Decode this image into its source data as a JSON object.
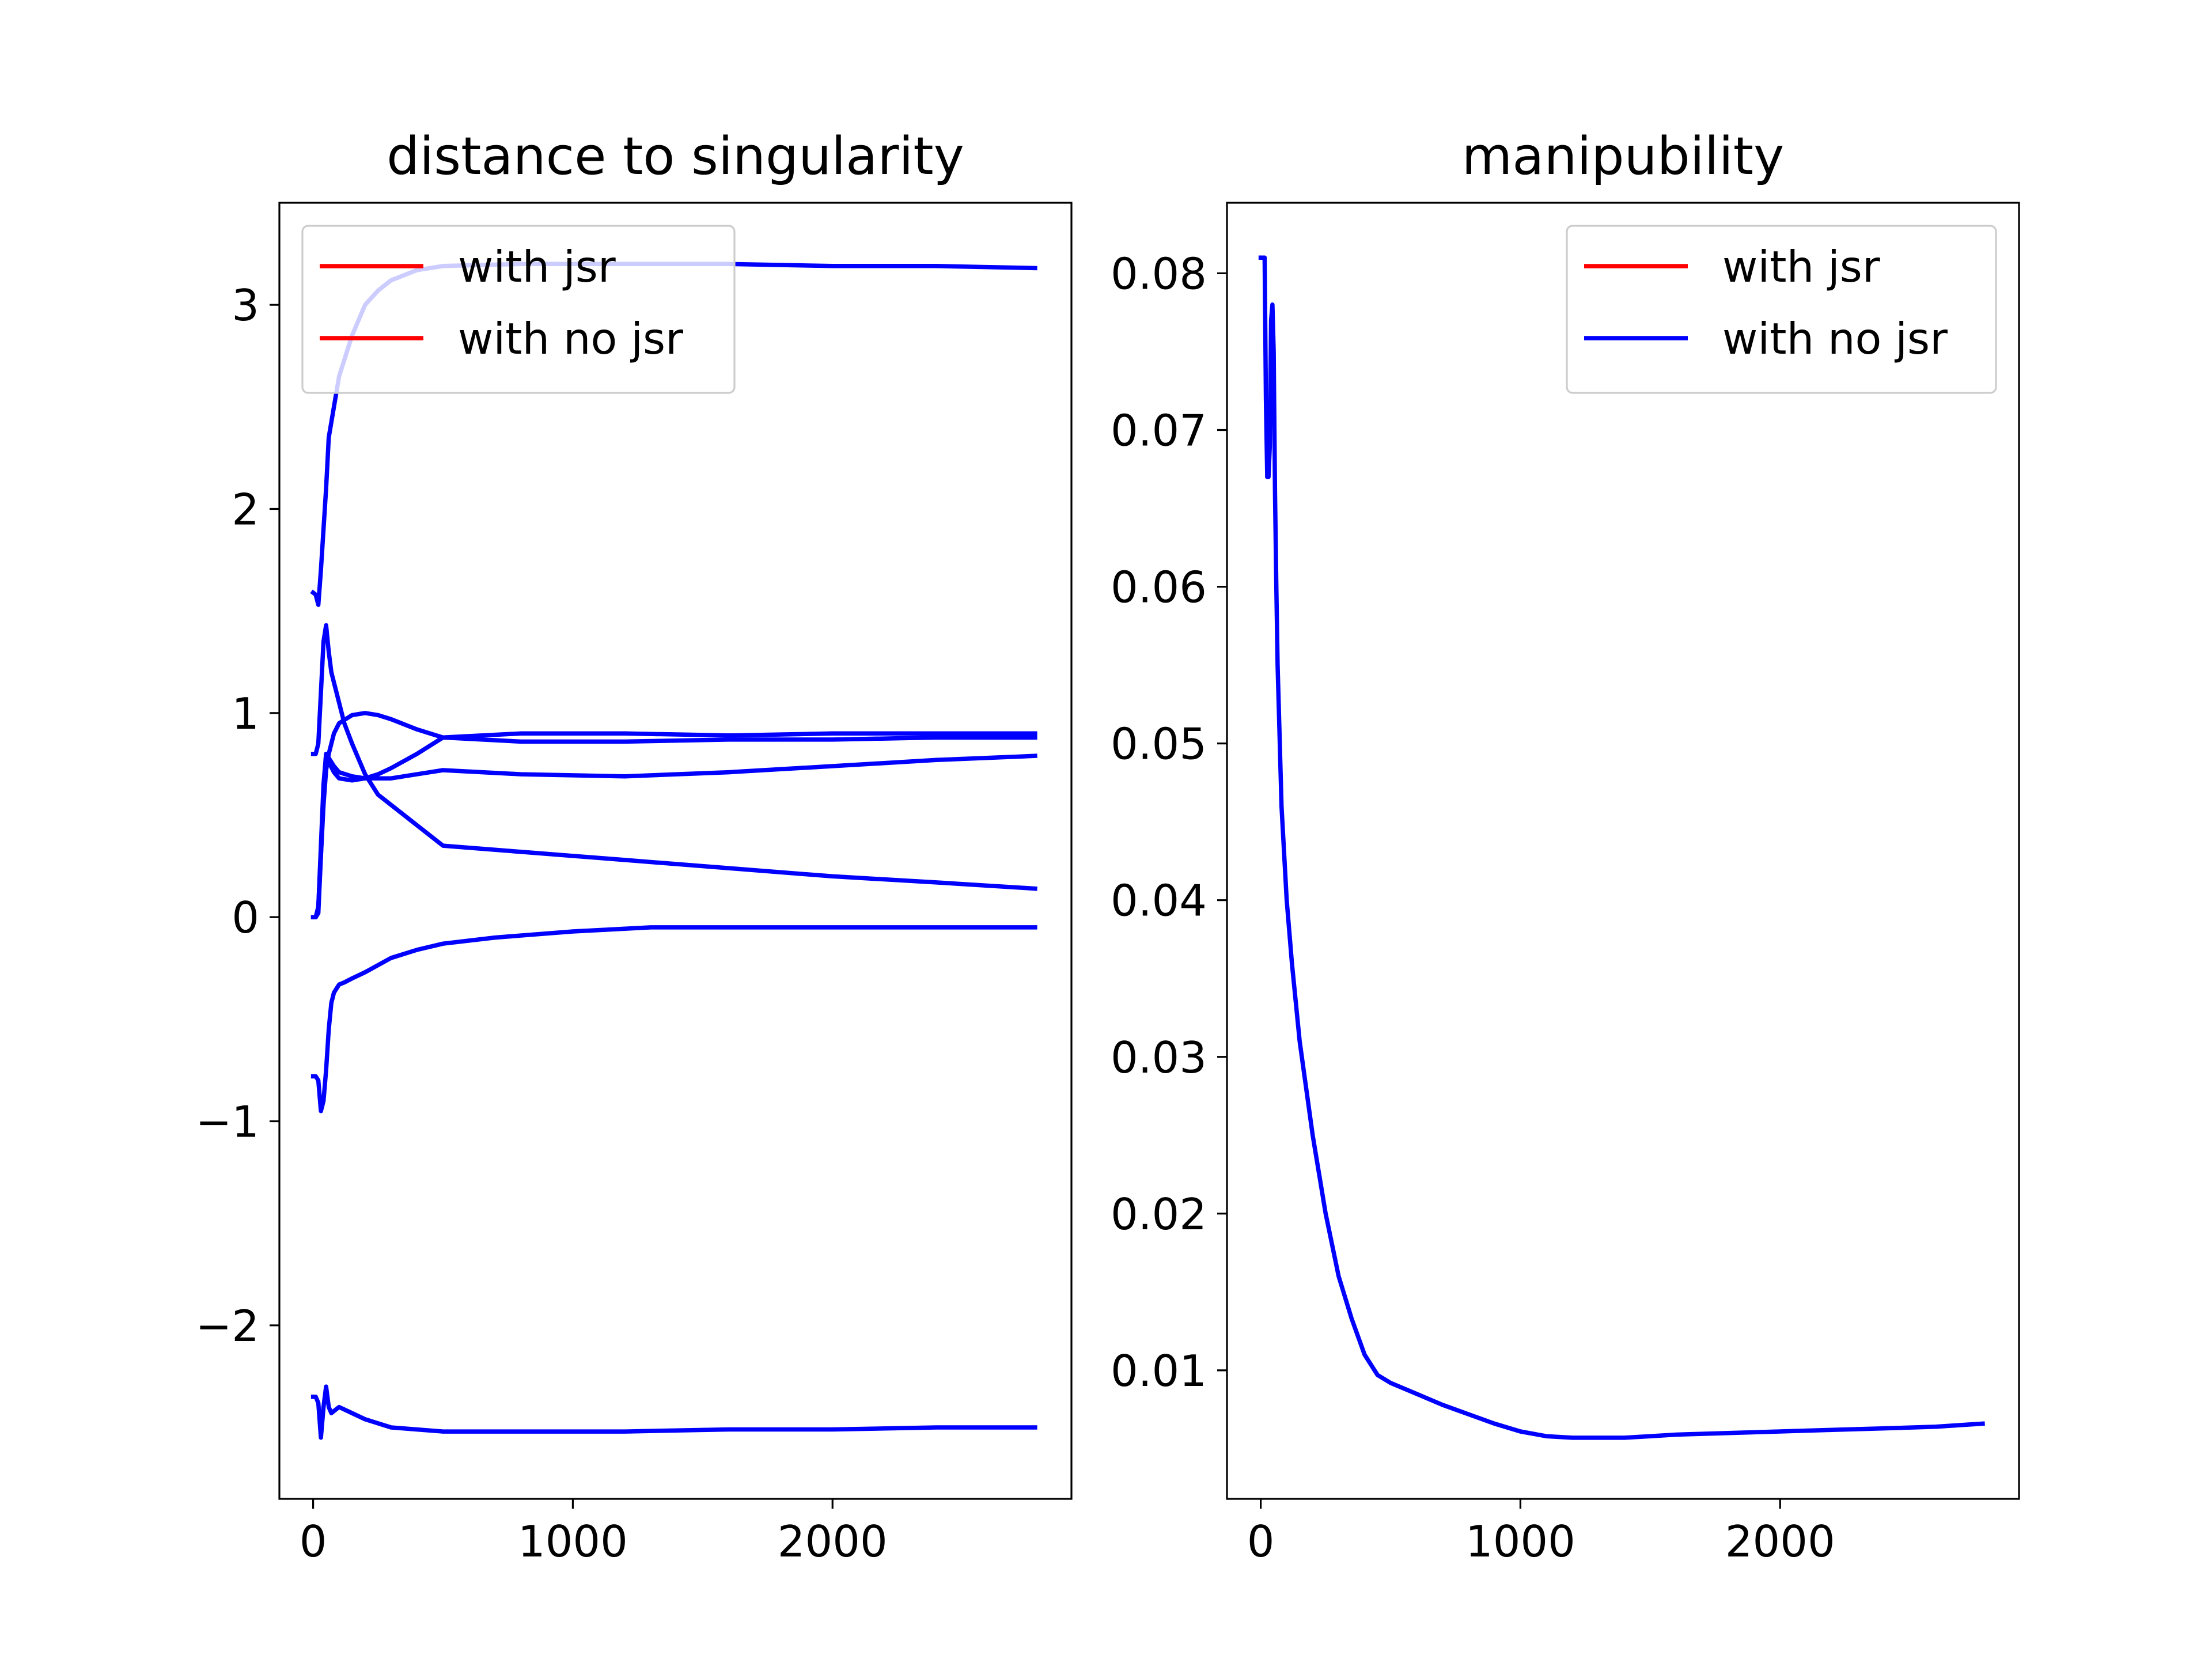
{
  "chart_data": [
    {
      "type": "line",
      "title": "distance to singularity",
      "xlabel": "",
      "ylabel": "",
      "xlim": [
        -130,
        2920
      ],
      "ylim": [
        -2.85,
        3.5
      ],
      "xticks": [
        0,
        1000,
        2000
      ],
      "xtick_labels": [
        "0",
        "1000",
        "2000"
      ],
      "yticks": [
        -2,
        -1,
        0,
        1,
        2,
        3
      ],
      "ytick_labels": [
        "−2",
        "−1",
        "0",
        "1",
        "2",
        "3"
      ],
      "grid": false,
      "legend": {
        "placement": "top-left",
        "entries": [
          {
            "label": "with jsr",
            "color": "#ff0000"
          },
          {
            "label": "with no jsr",
            "color": "#ff0000"
          }
        ]
      },
      "series": [
        {
          "color": "#0000ff",
          "x": [
            0,
            10,
            20,
            30,
            40,
            50,
            60,
            80,
            100,
            150,
            200,
            250,
            300,
            400,
            500,
            800,
            1200,
            1600,
            2000,
            2400,
            2780
          ],
          "y": [
            1.59,
            1.58,
            1.53,
            1.7,
            1.9,
            2.1,
            2.35,
            2.5,
            2.65,
            2.85,
            3.0,
            3.07,
            3.12,
            3.17,
            3.19,
            3.2,
            3.2,
            3.2,
            3.19,
            3.19,
            3.18
          ]
        },
        {
          "color": "#0000ff",
          "x": [
            0,
            10,
            20,
            30,
            40,
            50,
            60,
            70,
            80,
            100,
            120,
            150,
            200,
            250,
            300,
            400,
            500,
            800,
            1200,
            1600,
            2000,
            2400,
            2780
          ],
          "y": [
            0.8,
            0.8,
            0.85,
            1.1,
            1.35,
            1.43,
            1.3,
            1.2,
            1.15,
            1.05,
            0.95,
            0.85,
            0.7,
            0.6,
            0.55,
            0.45,
            0.35,
            0.32,
            0.28,
            0.24,
            0.2,
            0.17,
            0.14
          ]
        },
        {
          "color": "#0000ff",
          "x": [
            0,
            10,
            20,
            30,
            40,
            50,
            60,
            80,
            100,
            150,
            200,
            250,
            300,
            400,
            500,
            800,
            1200,
            1600,
            2000,
            2400,
            2780
          ],
          "y": [
            0.0,
            0.0,
            0.05,
            0.3,
            0.55,
            0.72,
            0.8,
            0.9,
            0.95,
            0.99,
            1.0,
            0.99,
            0.97,
            0.92,
            0.88,
            0.86,
            0.86,
            0.87,
            0.87,
            0.88,
            0.88
          ]
        },
        {
          "color": "#0000ff",
          "x": [
            0,
            10,
            20,
            30,
            40,
            50,
            60,
            80,
            100,
            150,
            200,
            250,
            300,
            400,
            500,
            800,
            1200,
            1600,
            2000,
            2400,
            2780
          ],
          "y": [
            0.0,
            0.0,
            0.02,
            0.3,
            0.6,
            0.8,
            0.76,
            0.71,
            0.68,
            0.67,
            0.68,
            0.7,
            0.73,
            0.8,
            0.88,
            0.9,
            0.9,
            0.89,
            0.9,
            0.9,
            0.9
          ]
        },
        {
          "color": "#0000ff",
          "x": [
            0,
            10,
            20,
            30,
            40,
            50,
            60,
            80,
            100,
            150,
            200,
            250,
            300,
            400,
            500,
            800,
            1200,
            1600,
            2000,
            2400,
            2780
          ],
          "y": [
            0.0,
            0.0,
            0.05,
            0.35,
            0.65,
            0.8,
            0.78,
            0.74,
            0.71,
            0.69,
            0.68,
            0.68,
            0.68,
            0.7,
            0.72,
            0.7,
            0.69,
            0.71,
            0.74,
            0.77,
            0.79
          ]
        },
        {
          "color": "#0000ff",
          "x": [
            0,
            10,
            20,
            30,
            40,
            50,
            60,
            70,
            80,
            100,
            120,
            150,
            200,
            300,
            400,
            500,
            700,
            1000,
            1300,
            1600,
            2000,
            2400,
            2780
          ],
          "y": [
            -0.78,
            -0.78,
            -0.8,
            -0.95,
            -0.9,
            -0.75,
            -0.55,
            -0.42,
            -0.37,
            -0.33,
            -0.32,
            -0.3,
            -0.27,
            -0.2,
            -0.16,
            -0.13,
            -0.1,
            -0.07,
            -0.05,
            -0.05,
            -0.05,
            -0.05,
            -0.05
          ]
        },
        {
          "color": "#0000ff",
          "x": [
            0,
            10,
            20,
            30,
            40,
            50,
            60,
            70,
            80,
            100,
            150,
            200,
            300,
            500,
            800,
            1200,
            1600,
            2000,
            2400,
            2780
          ],
          "y": [
            -2.35,
            -2.35,
            -2.38,
            -2.55,
            -2.4,
            -2.3,
            -2.4,
            -2.43,
            -2.42,
            -2.4,
            -2.43,
            -2.46,
            -2.5,
            -2.52,
            -2.52,
            -2.52,
            -2.51,
            -2.51,
            -2.5,
            -2.5
          ]
        }
      ]
    },
    {
      "type": "line",
      "title": "manipubility",
      "xlabel": "",
      "ylabel": "",
      "xlim": [
        -130,
        2920
      ],
      "ylim": [
        0.0018,
        0.0845
      ],
      "xticks": [
        0,
        1000,
        2000
      ],
      "xtick_labels": [
        "0",
        "1000",
        "2000"
      ],
      "yticks": [
        0.01,
        0.02,
        0.03,
        0.04,
        0.05,
        0.06,
        0.07,
        0.08
      ],
      "ytick_labels": [
        "0.01",
        "0.02",
        "0.03",
        "0.04",
        "0.05",
        "0.06",
        "0.07",
        "0.08"
      ],
      "grid": false,
      "legend": {
        "placement": "top-right",
        "entries": [
          {
            "label": "with jsr",
            "color": "#ff0000"
          },
          {
            "label": "with no jsr",
            "color": "#0000ff"
          }
        ]
      },
      "series": [
        {
          "color": "#0000ff",
          "x": [
            0,
            15,
            20,
            25,
            30,
            35,
            40,
            45,
            50,
            55,
            60,
            65,
            70,
            80,
            100,
            120,
            150,
            200,
            250,
            300,
            350,
            400,
            450,
            500,
            600,
            700,
            800,
            900,
            1000,
            1100,
            1200,
            1300,
            1400,
            1500,
            1600,
            1800,
            2000,
            2200,
            2400,
            2600,
            2780
          ],
          "y": [
            0.081,
            0.081,
            0.072,
            0.067,
            0.067,
            0.069,
            0.077,
            0.078,
            0.075,
            0.066,
            0.06,
            0.055,
            0.052,
            0.046,
            0.04,
            0.036,
            0.031,
            0.025,
            0.02,
            0.016,
            0.0133,
            0.011,
            0.0097,
            0.0092,
            0.0085,
            0.0078,
            0.0072,
            0.0066,
            0.0061,
            0.0058,
            0.0057,
            0.0057,
            0.0057,
            0.0058,
            0.0059,
            0.006,
            0.0061,
            0.0062,
            0.0063,
            0.0064,
            0.0066
          ]
        }
      ]
    }
  ]
}
